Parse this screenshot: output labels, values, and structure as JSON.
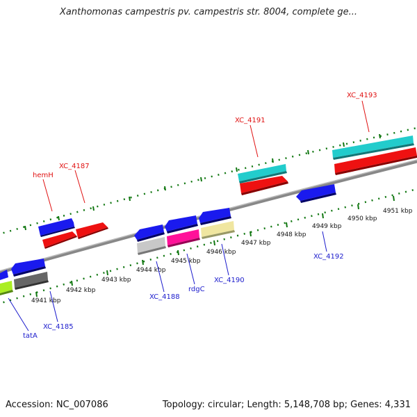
{
  "title": "Xanthomonas campestris pv. campestris str. 8004, complete ge...",
  "footer": {
    "accession": "Accession: NC_007086",
    "summary": "Topology: circular; Length: 5,148,708 bp; Genes: 4,331"
  },
  "kbp_labels": [
    "4941 kbp",
    "4942 kbp",
    "4943 kbp",
    "4944 kbp",
    "4945 kbp",
    "4946 kbp",
    "4947 kbp",
    "4948 kbp",
    "4949 kbp",
    "4950 kbp",
    "4951 kbp"
  ],
  "gene_labels": {
    "hemH": "hemH",
    "xc4187": "XC_4187",
    "xc4191": "XC_4191",
    "xc4193": "XC_4193",
    "xc4192": "XC_4192",
    "xc4190": "XC_4190",
    "rdgC": "rdgC",
    "xc4188": "XC_4188",
    "xc4185": "XC_4185",
    "tatA": "tatA"
  },
  "colors": {
    "red_gene": "#ee1111",
    "blue_gene": "#1a1aee",
    "cyan_gene": "#22cccc",
    "grey_gene": "#c8c8c8",
    "magenta_gene": "#ff1199",
    "khaki_gene": "#f0e6a0",
    "lime_gene": "#aaee22",
    "darkgrey_gene": "#666666",
    "backbone": "#888888",
    "ticks": "#117711"
  }
}
